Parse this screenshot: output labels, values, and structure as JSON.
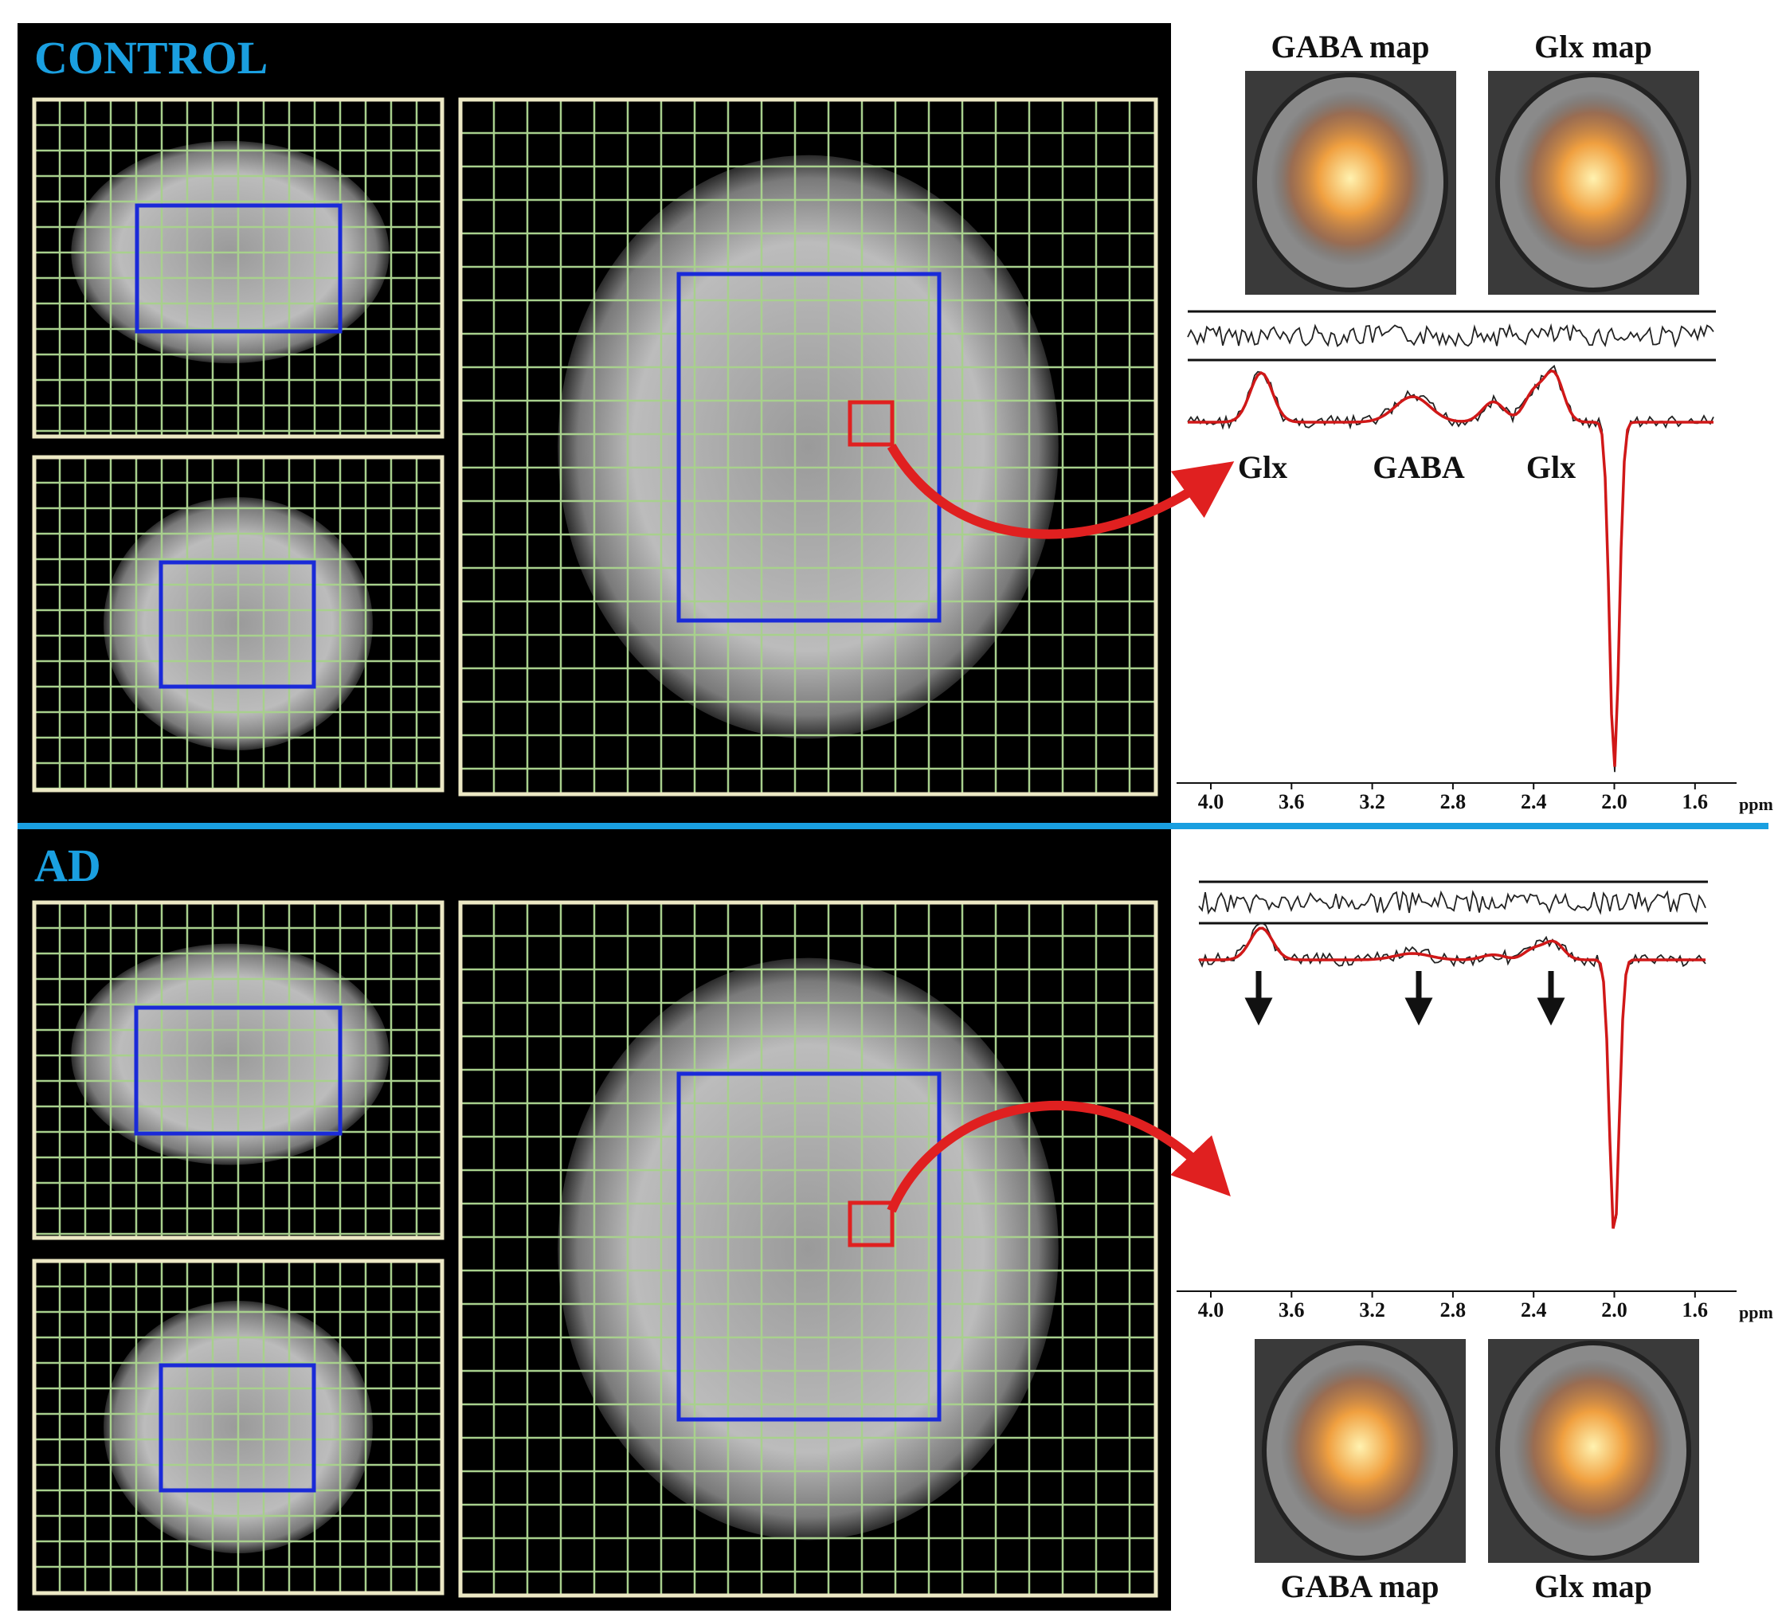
{
  "control": {
    "label": "CONTROL",
    "maps": [
      "GABA map",
      "Glx map"
    ],
    "peaks": [
      "Glx",
      "GABA",
      "Glx"
    ],
    "axis": {
      "ticks": [
        "4.0",
        "3.6",
        "3.2",
        "2.8",
        "2.4",
        "2.0",
        "1.6"
      ],
      "unit": "ppm"
    }
  },
  "ad": {
    "label": "AD",
    "maps": [
      "GABA map",
      "Glx map"
    ],
    "axis": {
      "ticks": [
        "4.0",
        "3.6",
        "3.2",
        "2.8",
        "2.4",
        "2.0",
        "1.6"
      ],
      "unit": "ppm"
    }
  }
}
